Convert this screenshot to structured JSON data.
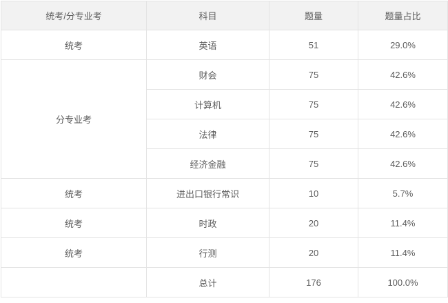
{
  "chart_data": {
    "type": "table",
    "columns": [
      "统考/分专业考",
      "科目",
      "题量",
      "题量占比"
    ],
    "rows": [
      [
        "统考",
        "英语",
        "51",
        "29.0%"
      ],
      [
        "分专业考",
        "财会",
        "75",
        "42.6%"
      ],
      [
        "",
        "计算机",
        "75",
        "42.6%"
      ],
      [
        "",
        "法律",
        "75",
        "42.6%"
      ],
      [
        "",
        "经济金融",
        "75",
        "42.6%"
      ],
      [
        "统考",
        "进出口银行常识",
        "10",
        "5.7%"
      ],
      [
        "统考",
        "时政",
        "20",
        "11.4%"
      ],
      [
        "统考",
        "行测",
        "20",
        "11.4%"
      ],
      [
        "",
        "总计",
        "176",
        "100.0%"
      ]
    ],
    "merged_cells": [
      {
        "column_index": 0,
        "row_start": 1,
        "row_span": 4,
        "value": "分专业考"
      }
    ],
    "layout": {
      "grid": "on",
      "header_position": "top"
    }
  },
  "colors": {
    "header_bg": "#f2f2f2",
    "border": "#e3e3e3",
    "text": "#5c5c5c",
    "row_bg": "#ffffff"
  }
}
